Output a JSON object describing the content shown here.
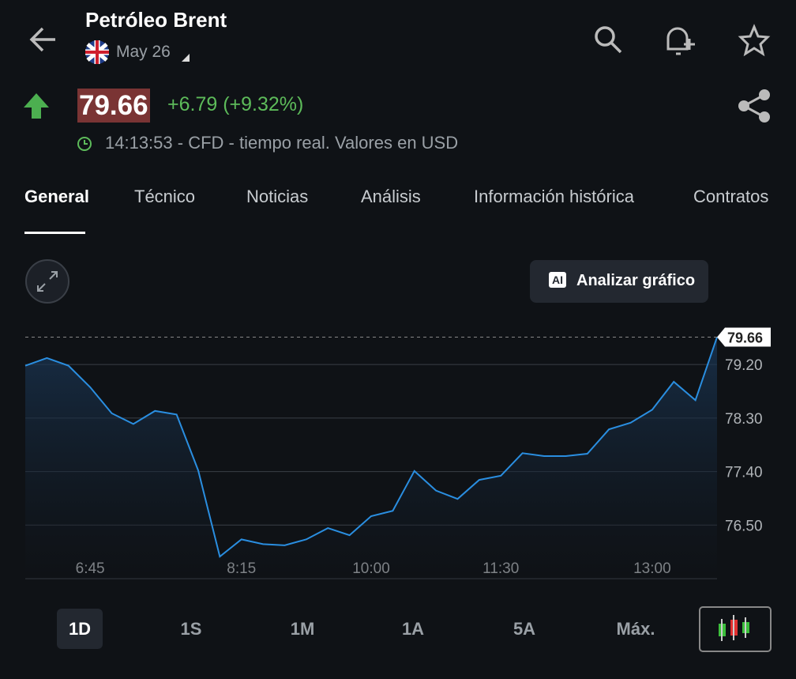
{
  "header": {
    "title": "Petróleo Brent",
    "date": "May 26",
    "price": "79.66",
    "change": "+6.79 (+9.32%)",
    "status": "14:13:53 - CFD - tiempo real. Valores en USD"
  },
  "tabs": [
    "General",
    "Técnico",
    "Noticias",
    "Análisis",
    "Información histórica",
    "Contratos"
  ],
  "ai_badge": "AI",
  "analyze_button": "Analizar gráfico",
  "periods": [
    "1D",
    "1S",
    "1M",
    "1A",
    "5A",
    "Máx."
  ],
  "chart_data": {
    "type": "area",
    "color": "#2a8ee0",
    "grid": true,
    "categories": [
      null,
      null,
      null,
      "6:45",
      null,
      null,
      null,
      null,
      null,
      null,
      "8:15",
      null,
      null,
      null,
      null,
      null,
      "10:00",
      null,
      null,
      null,
      null,
      null,
      "11:30",
      null,
      null,
      null,
      null,
      null,
      null,
      "13:00",
      null,
      null,
      null
    ],
    "values": [
      79.18,
      79.31,
      79.18,
      78.82,
      78.38,
      78.2,
      78.42,
      78.36,
      77.42,
      75.97,
      76.26,
      76.18,
      76.16,
      76.26,
      76.45,
      76.33,
      76.65,
      76.74,
      77.41,
      77.08,
      76.94,
      77.26,
      77.33,
      77.71,
      77.66,
      77.66,
      77.7,
      78.11,
      78.22,
      78.44,
      78.91,
      78.6,
      79.66
    ],
    "ylim": [
      75.6,
      79.9
    ],
    "yticks": [
      {
        "value": 79.2,
        "label": "79.20"
      },
      {
        "value": 78.3,
        "label": "78.30"
      },
      {
        "value": 77.4,
        "label": "77.40"
      },
      {
        "value": 76.5,
        "label": "76.50"
      }
    ]
  }
}
